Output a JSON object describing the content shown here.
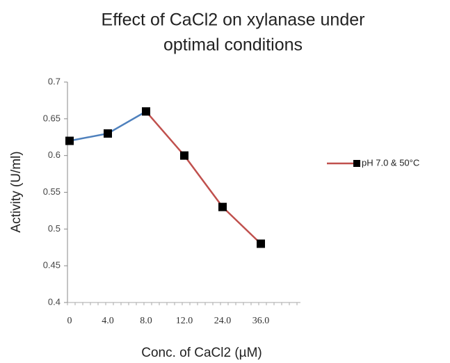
{
  "chart_data": {
    "type": "line",
    "title": [
      "Effect of CaCl2 on  xylanase under",
      "optimal conditions"
    ],
    "x_label": "Conc. of CaCl2 (µM)",
    "y_label": "Activity (U/ml)",
    "categories": [
      "0",
      "4.0",
      "8.0",
      "12.0",
      "24.0",
      "36.0"
    ],
    "series": [
      {
        "name": "pH 7.0 & 50°C",
        "color": "#c0504d",
        "values": [
          0.62,
          0.63,
          0.66,
          0.6,
          0.53,
          0.48
        ]
      }
    ],
    "segment_colors": [
      "#4f81bd",
      "#4f81bd",
      "#c0504d",
      "#c0504d",
      "#c0504d"
    ],
    "ylim": [
      0.4,
      0.7
    ],
    "yticks": [
      0.4,
      0.45,
      0.5,
      0.55,
      0.6,
      0.65,
      0.7
    ],
    "legend": "right"
  }
}
